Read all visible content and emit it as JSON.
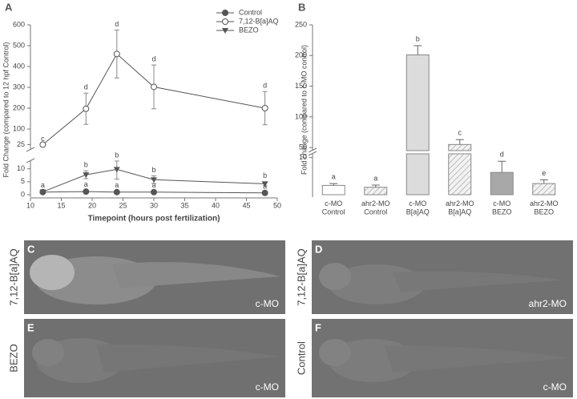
{
  "chart_data": [
    {
      "type": "line",
      "panel_label": "A",
      "xlabel": "Timepoint (hours post fertilization)",
      "ylabel": "Fold Change (compared to 12 hpf Control)",
      "x": [
        12,
        19,
        24,
        30,
        48
      ],
      "xlim": [
        10,
        50
      ],
      "xticks": [
        10,
        15,
        20,
        25,
        30,
        35,
        40,
        45,
        50
      ],
      "y_segments": [
        {
          "ylim": [
            0,
            13
          ],
          "yticks": [
            0,
            5,
            10
          ]
        },
        {
          "ylim": [
            0,
            600
          ],
          "yticks": [
            25,
            100,
            200,
            300,
            400,
            500,
            600
          ]
        }
      ],
      "legend": "upper right",
      "series": [
        {
          "name": "Control",
          "color": "#555555",
          "marker": "filled-circle",
          "values": [
            1,
            1.2,
            1,
            1,
            0.7
          ],
          "errors": [
            0.3,
            0.4,
            0.3,
            0.3,
            0.2
          ],
          "letters": [
            "a",
            "a",
            "a",
            "a",
            "a"
          ]
        },
        {
          "name": "7,12-B[a]AQ",
          "color": "#555555",
          "marker": "open-circle",
          "values": [
            25,
            197,
            460,
            302,
            200
          ],
          "errors": [
            0,
            75,
            115,
            105,
            80
          ],
          "letters": [
            "c",
            "d",
            "d",
            "d",
            "d"
          ]
        },
        {
          "name": "BEZO",
          "color": "#555555",
          "marker": "filled-triangle",
          "values": [
            1.1,
            7.7,
            9.8,
            5.8,
            4.2
          ],
          "errors": [
            0,
            1.5,
            3.8,
            1.5,
            0.8
          ],
          "letters": [
            null,
            "b",
            "b",
            "b",
            "b"
          ]
        }
      ]
    },
    {
      "type": "bar",
      "panel_label": "B",
      "ylabel": "Fold change (compared to c-MO control)",
      "categories": [
        "c-MO\nControl",
        "ahr2-MO\nControl",
        "c-MO\nB[a]AQ",
        "ahr2-MO\nB[a]AQ",
        "c-MO\nBEZO",
        "ahr2-MO\nBEZO"
      ],
      "values": [
        2.5,
        2,
        201,
        55,
        6,
        3
      ],
      "errors": [
        0.5,
        0.6,
        15,
        8,
        3,
        1
      ],
      "letters": [
        "a",
        "a",
        "b",
        "c",
        "d",
        "e"
      ],
      "colors": [
        "#ffffff",
        "#ffffff",
        "#dcdcdc",
        "#d4d4d4",
        "#a8a8a8",
        "#a8a8a8"
      ],
      "hatch": [
        false,
        true,
        false,
        true,
        false,
        true
      ],
      "y_segments": [
        {
          "ylim": [
            0,
            11
          ],
          "yticks": [
            10
          ]
        },
        {
          "ylim": [
            45,
            250
          ],
          "yticks": [
            50,
            100,
            150,
            200,
            250
          ]
        }
      ]
    }
  ],
  "image_panels": [
    {
      "label": "C",
      "side_label": "7,12-B[a]AQ",
      "corner_label": "c-MO"
    },
    {
      "label": "D",
      "side_label": "7,12-B[a]AQ",
      "corner_label": "ahr2-MO"
    },
    {
      "label": "E",
      "side_label": "BEZO",
      "corner_label": "c-MO"
    },
    {
      "label": "F",
      "side_label": "Control",
      "corner_label": "c-MO"
    }
  ]
}
